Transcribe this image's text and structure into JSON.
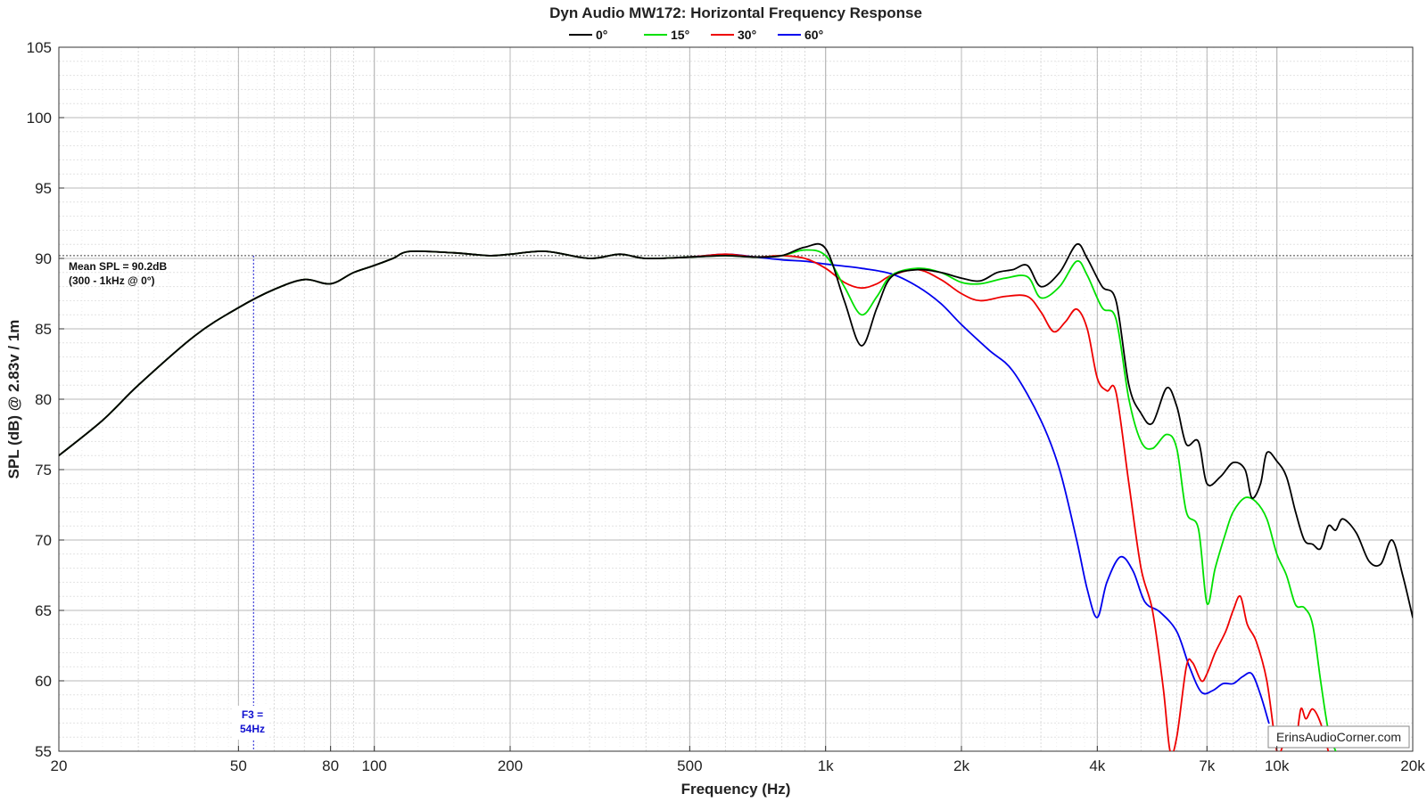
{
  "chart_data": {
    "type": "line",
    "title": "Dyn Audio MW172: Horizontal Frequency Response",
    "xlabel": "Frequency (Hz)",
    "ylabel": "SPL (dB) @ 2.83v / 1m",
    "xscale": "log",
    "xlim": [
      20,
      20000
    ],
    "ylim": [
      55,
      105
    ],
    "grid": true,
    "legend_position": "top-center",
    "x_ticks": [
      {
        "value": 20,
        "label": "20"
      },
      {
        "value": 50,
        "label": "50"
      },
      {
        "value": 80,
        "label": "80"
      },
      {
        "value": 100,
        "label": "100"
      },
      {
        "value": 200,
        "label": "200"
      },
      {
        "value": 500,
        "label": "500"
      },
      {
        "value": 1000,
        "label": "1k"
      },
      {
        "value": 2000,
        "label": "2k"
      },
      {
        "value": 4000,
        "label": "4k"
      },
      {
        "value": 7000,
        "label": "7k"
      },
      {
        "value": 10000,
        "label": "10k"
      },
      {
        "value": 20000,
        "label": "20k"
      }
    ],
    "y_ticks": [
      55,
      60,
      65,
      70,
      75,
      80,
      85,
      90,
      95,
      100,
      105
    ],
    "series": [
      {
        "name": "0°",
        "color": "#000000",
        "points": [
          [
            20,
            76
          ],
          [
            25,
            78.5
          ],
          [
            30,
            81
          ],
          [
            40,
            84.5
          ],
          [
            50,
            86.5
          ],
          [
            60,
            87.8
          ],
          [
            70,
            88.5
          ],
          [
            80,
            88.2
          ],
          [
            90,
            89
          ],
          [
            100,
            89.5
          ],
          [
            110,
            90
          ],
          [
            120,
            90.5
          ],
          [
            150,
            90.4
          ],
          [
            180,
            90.2
          ],
          [
            200,
            90.3
          ],
          [
            240,
            90.5
          ],
          [
            300,
            90
          ],
          [
            350,
            90.3
          ],
          [
            400,
            90
          ],
          [
            500,
            90.1
          ],
          [
            600,
            90.2
          ],
          [
            700,
            90.1
          ],
          [
            800,
            90.2
          ],
          [
            900,
            90.8
          ],
          [
            1000,
            90.7
          ],
          [
            1100,
            87
          ],
          [
            1200,
            83.8
          ],
          [
            1300,
            86.5
          ],
          [
            1400,
            88.7
          ],
          [
            1600,
            89.2
          ],
          [
            1800,
            89
          ],
          [
            2000,
            88.6
          ],
          [
            2200,
            88.4
          ],
          [
            2400,
            89
          ],
          [
            2600,
            89.2
          ],
          [
            2800,
            89.5
          ],
          [
            3000,
            88
          ],
          [
            3300,
            89
          ],
          [
            3600,
            91
          ],
          [
            3800,
            90
          ],
          [
            4100,
            88
          ],
          [
            4400,
            87
          ],
          [
            4700,
            81
          ],
          [
            5000,
            79
          ],
          [
            5300,
            78.3
          ],
          [
            5700,
            80.8
          ],
          [
            6000,
            79.5
          ],
          [
            6300,
            76.8
          ],
          [
            6700,
            77
          ],
          [
            7000,
            74
          ],
          [
            7500,
            74.5
          ],
          [
            8000,
            75.5
          ],
          [
            8500,
            75
          ],
          [
            8800,
            73
          ],
          [
            9200,
            74
          ],
          [
            9500,
            76.2
          ],
          [
            10000,
            75.6
          ],
          [
            10500,
            74.5
          ],
          [
            11000,
            72
          ],
          [
            11500,
            70
          ],
          [
            12000,
            69.7
          ],
          [
            12500,
            69.4
          ],
          [
            13000,
            71
          ],
          [
            13500,
            70.7
          ],
          [
            14000,
            71.5
          ],
          [
            15000,
            70.5
          ],
          [
            16000,
            68.5
          ],
          [
            17000,
            68.3
          ],
          [
            18000,
            70
          ],
          [
            19000,
            67.5
          ],
          [
            20000,
            64.5
          ]
        ]
      },
      {
        "name": "15°",
        "color": "#00e000",
        "points": [
          [
            20,
            76
          ],
          [
            25,
            78.5
          ],
          [
            30,
            81
          ],
          [
            40,
            84.5
          ],
          [
            50,
            86.5
          ],
          [
            60,
            87.8
          ],
          [
            70,
            88.5
          ],
          [
            80,
            88.2
          ],
          [
            90,
            89
          ],
          [
            100,
            89.5
          ],
          [
            110,
            90
          ],
          [
            120,
            90.5
          ],
          [
            150,
            90.4
          ],
          [
            180,
            90.2
          ],
          [
            200,
            90.3
          ],
          [
            240,
            90.5
          ],
          [
            300,
            90
          ],
          [
            350,
            90.3
          ],
          [
            400,
            90
          ],
          [
            500,
            90.1
          ],
          [
            600,
            90.2
          ],
          [
            700,
            90.1
          ],
          [
            800,
            90.2
          ],
          [
            900,
            90.6
          ],
          [
            1000,
            90.2
          ],
          [
            1100,
            88
          ],
          [
            1200,
            86
          ],
          [
            1300,
            87.3
          ],
          [
            1400,
            88.8
          ],
          [
            1600,
            89.3
          ],
          [
            1800,
            89
          ],
          [
            2000,
            88.3
          ],
          [
            2200,
            88.2
          ],
          [
            2500,
            88.6
          ],
          [
            2800,
            88.7
          ],
          [
            3000,
            87.2
          ],
          [
            3300,
            88
          ],
          [
            3600,
            89.8
          ],
          [
            3800,
            88.8
          ],
          [
            4100,
            86.5
          ],
          [
            4400,
            85.7
          ],
          [
            4700,
            80
          ],
          [
            5000,
            77
          ],
          [
            5300,
            76.5
          ],
          [
            5700,
            77.5
          ],
          [
            6000,
            76.5
          ],
          [
            6300,
            72
          ],
          [
            6700,
            70.8
          ],
          [
            7000,
            65.5
          ],
          [
            7300,
            68
          ],
          [
            7700,
            70.5
          ],
          [
            8000,
            72
          ],
          [
            8500,
            73
          ],
          [
            9000,
            72.7
          ],
          [
            9500,
            71.5
          ],
          [
            10000,
            69
          ],
          [
            10500,
            67.5
          ],
          [
            11000,
            65.4
          ],
          [
            11500,
            65.2
          ],
          [
            12000,
            64
          ],
          [
            12500,
            60
          ],
          [
            13000,
            56.5
          ],
          [
            13500,
            55
          ]
        ]
      },
      {
        "name": "30°",
        "color": "#ee0000",
        "points": [
          [
            20,
            76
          ],
          [
            25,
            78.5
          ],
          [
            30,
            81
          ],
          [
            40,
            84.5
          ],
          [
            50,
            86.5
          ],
          [
            60,
            87.8
          ],
          [
            70,
            88.5
          ],
          [
            80,
            88.2
          ],
          [
            90,
            89
          ],
          [
            100,
            89.5
          ],
          [
            110,
            90
          ],
          [
            120,
            90.5
          ],
          [
            150,
            90.4
          ],
          [
            180,
            90.2
          ],
          [
            200,
            90.3
          ],
          [
            240,
            90.5
          ],
          [
            300,
            90
          ],
          [
            350,
            90.3
          ],
          [
            400,
            90
          ],
          [
            500,
            90.1
          ],
          [
            600,
            90.3
          ],
          [
            700,
            90.1
          ],
          [
            800,
            90.2
          ],
          [
            900,
            90
          ],
          [
            1000,
            89.3
          ],
          [
            1100,
            88.3
          ],
          [
            1200,
            87.9
          ],
          [
            1300,
            88.2
          ],
          [
            1400,
            88.8
          ],
          [
            1600,
            89.2
          ],
          [
            1800,
            88.5
          ],
          [
            2000,
            87.5
          ],
          [
            2200,
            87
          ],
          [
            2500,
            87.3
          ],
          [
            2800,
            87.3
          ],
          [
            3000,
            86.2
          ],
          [
            3200,
            84.8
          ],
          [
            3400,
            85.5
          ],
          [
            3600,
            86.4
          ],
          [
            3800,
            85
          ],
          [
            4000,
            81.5
          ],
          [
            4200,
            80.6
          ],
          [
            4400,
            80.5
          ],
          [
            4700,
            74
          ],
          [
            5000,
            68
          ],
          [
            5300,
            65
          ],
          [
            5600,
            59.5
          ],
          [
            5800,
            55
          ],
          [
            6000,
            56
          ],
          [
            6300,
            61
          ],
          [
            6500,
            61.3
          ],
          [
            6800,
            60
          ],
          [
            7000,
            60.5
          ],
          [
            7300,
            62
          ],
          [
            7700,
            63.5
          ],
          [
            8000,
            65
          ],
          [
            8300,
            66
          ],
          [
            8600,
            64
          ],
          [
            9000,
            62.8
          ],
          [
            9500,
            60
          ],
          [
            10000,
            55
          ],
          [
            10300,
            55.3
          ],
          [
            10700,
            56
          ],
          [
            11000,
            55.5
          ],
          [
            11300,
            58
          ],
          [
            11600,
            57.3
          ],
          [
            12000,
            58
          ],
          [
            12500,
            57
          ],
          [
            13000,
            55
          ]
        ]
      },
      {
        "name": "60°",
        "color": "#0000ee",
        "points": [
          [
            20,
            76
          ],
          [
            25,
            78.5
          ],
          [
            30,
            81
          ],
          [
            40,
            84.5
          ],
          [
            50,
            86.5
          ],
          [
            60,
            87.8
          ],
          [
            70,
            88.5
          ],
          [
            80,
            88.2
          ],
          [
            90,
            89
          ],
          [
            100,
            89.5
          ],
          [
            110,
            90
          ],
          [
            120,
            90.5
          ],
          [
            150,
            90.4
          ],
          [
            180,
            90.2
          ],
          [
            200,
            90.3
          ],
          [
            240,
            90.5
          ],
          [
            300,
            90
          ],
          [
            350,
            90.3
          ],
          [
            400,
            90
          ],
          [
            500,
            90.1
          ],
          [
            600,
            90.3
          ],
          [
            700,
            90.1
          ],
          [
            800,
            89.9
          ],
          [
            900,
            89.8
          ],
          [
            1000,
            89.6
          ],
          [
            1200,
            89.3
          ],
          [
            1400,
            88.9
          ],
          [
            1600,
            88
          ],
          [
            1800,
            86.8
          ],
          [
            2000,
            85.3
          ],
          [
            2300,
            83.5
          ],
          [
            2600,
            82
          ],
          [
            3000,
            78.5
          ],
          [
            3300,
            75
          ],
          [
            3600,
            70
          ],
          [
            3800,
            66.5
          ],
          [
            4000,
            64.5
          ],
          [
            4200,
            67
          ],
          [
            4500,
            68.8
          ],
          [
            4800,
            67.8
          ],
          [
            5100,
            65.6
          ],
          [
            5500,
            64.9
          ],
          [
            6000,
            63.5
          ],
          [
            6400,
            61
          ],
          [
            6800,
            59.2
          ],
          [
            7200,
            59.3
          ],
          [
            7600,
            59.8
          ],
          [
            8000,
            59.8
          ],
          [
            8400,
            60.3
          ],
          [
            8800,
            60.5
          ],
          [
            9200,
            59
          ],
          [
            9600,
            57
          ]
        ]
      }
    ],
    "reference_line": {
      "y": 90.2,
      "style": "dotted"
    },
    "annotations": {
      "mean_spl_line1": "Mean SPL = 90.2dB",
      "mean_spl_line2": "(300 - 1kHz @ 0°)",
      "f3_line1": "F3 =",
      "f3_line2": "54Hz",
      "f3_x": 54
    },
    "watermark": "ErinsAudioCorner.com"
  }
}
